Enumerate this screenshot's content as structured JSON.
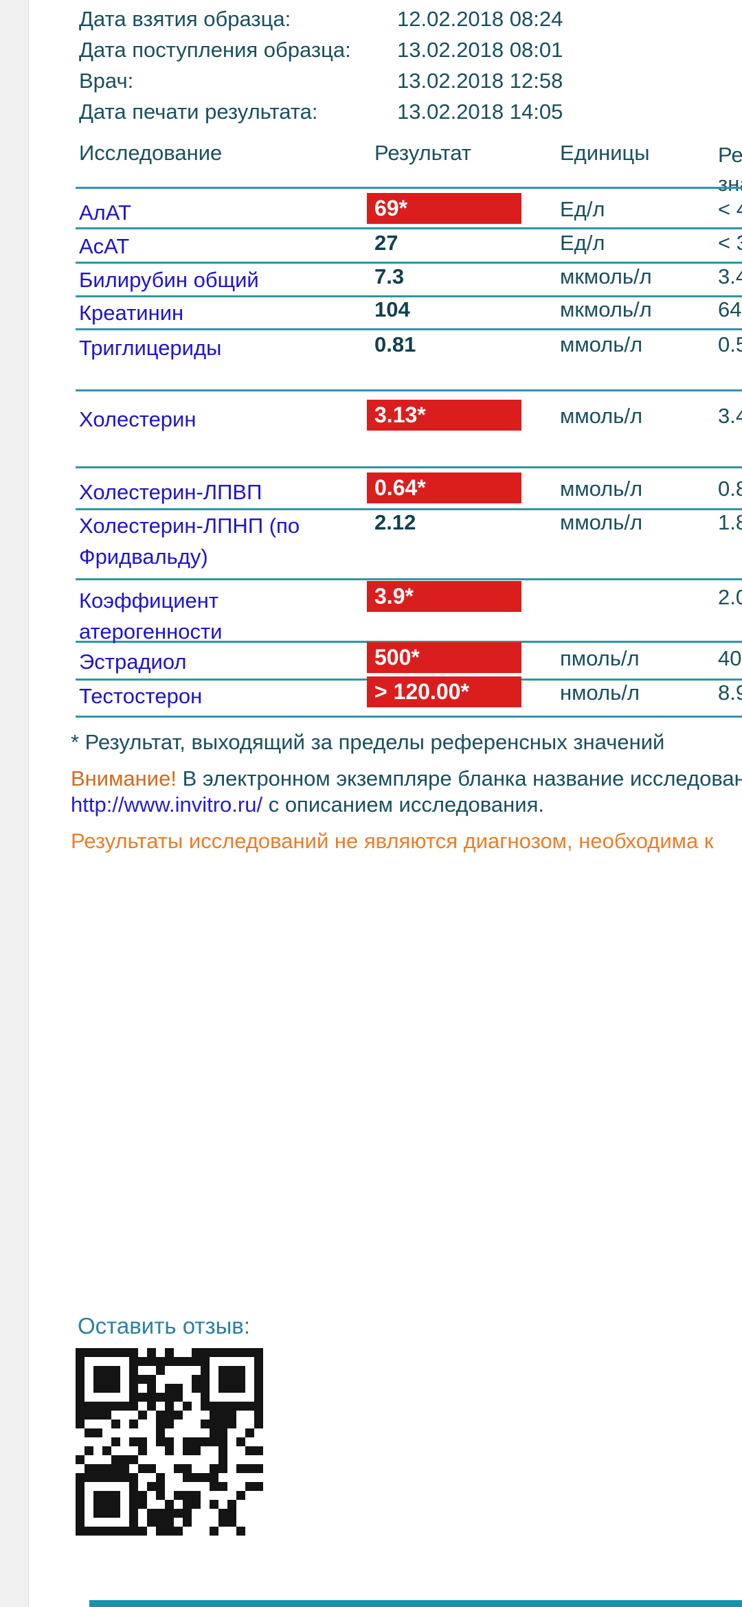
{
  "meta": {
    "rows": [
      {
        "label": "Дата взятия образца:",
        "value": "12.02.2018 08:24"
      },
      {
        "label": "Дата поступления образца:",
        "value": "13.02.2018 08:01"
      },
      {
        "label": "Врач:",
        "value": "13.02.2018 12:58"
      },
      {
        "label": "Дата печати результата:",
        "value": "13.02.2018 14:05"
      }
    ]
  },
  "table": {
    "headers": {
      "name": "Исследование",
      "result": "Результат",
      "units": "Единицы",
      "reference": "Референсные значения"
    },
    "rows": [
      {
        "name": "АлАТ",
        "result": "69*",
        "flagged": true,
        "units": "Ед/л",
        "reference": "< 4"
      },
      {
        "name": "АсАТ",
        "result": "27",
        "flagged": false,
        "units": "Ед/л",
        "reference": "< 3"
      },
      {
        "name": "Билирубин общий",
        "result": "7.3",
        "flagged": false,
        "units": "мкмоль/л",
        "reference": "3.4"
      },
      {
        "name": "Креатинин",
        "result": "104",
        "flagged": false,
        "units": "мкмоль/л",
        "reference": "64"
      },
      {
        "name": "Триглицериды",
        "result": "0.81",
        "flagged": false,
        "units": "ммоль/л",
        "reference": "0.5"
      },
      {
        "name": "Холестерин",
        "result": "3.13*",
        "flagged": true,
        "units": "ммоль/л",
        "reference": "3.4"
      },
      {
        "name": "Холестерин-ЛПВП",
        "result": "0.64*",
        "flagged": true,
        "units": "ммоль/л",
        "reference": "0.8"
      },
      {
        "name": "Холестерин-ЛПНП (по Фридвальду)",
        "result": "2.12",
        "flagged": false,
        "units": "ммоль/л",
        "reference": "1.8"
      },
      {
        "name": "Коэффициент атерогенности",
        "result": "3.9*",
        "flagged": true,
        "units": "",
        "reference": "2.0"
      },
      {
        "name": "Эстрадиол",
        "result": "500*",
        "flagged": true,
        "units": "пмоль/л",
        "reference": "40"
      },
      {
        "name": "Тестостерон",
        "result": "> 120.00*",
        "flagged": true,
        "units": "нмоль/л",
        "reference": "8.9"
      }
    ]
  },
  "notes": {
    "footnote": "* Результат, выходящий за пределы референсных значений",
    "attention_label": "Внимание!",
    "attention_text": " В электронном экземпляре бланка название исследования",
    "link": "http://www.invitro.ru/",
    "link_suffix": " с описанием исследования.",
    "disclaimer": "Результаты исследований не являются диагнозом, необходима к"
  },
  "feedback": {
    "label": "Оставить отзыв:",
    "qr_icon": "qr-code"
  },
  "colors": {
    "text_teal": "#1a4f5d",
    "analyte_blue": "#1d14cc",
    "flag_red": "#da1e1e",
    "divider_teal": "#2f96a5",
    "attention_orange": "#d4691e",
    "disclaimer_orange": "#ed7d26",
    "link_blue": "#241bd5",
    "feedback_teal": "#2b80a2",
    "gutter_gray": "#f0f0f1",
    "bottom_bar_teal": "#1794ab"
  }
}
